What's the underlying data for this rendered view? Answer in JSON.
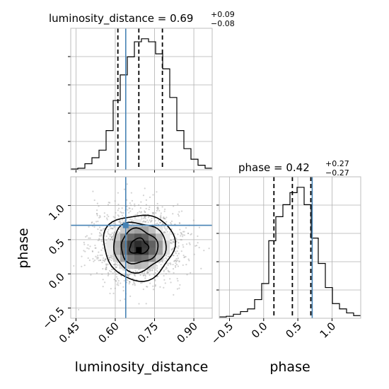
{
  "titles": {
    "p1": {
      "name": "luminosity_distance",
      "eq": " = ",
      "median": "0.69",
      "plus": "+0.09",
      "minus": "−0.08"
    },
    "p2": {
      "name": "phase",
      "eq": " = ",
      "median": "0.42",
      "plus": "+0.27",
      "minus": "−0.27"
    }
  },
  "axes": {
    "xlabel_left": "luminosity_distance",
    "xlabel_right": "phase",
    "ylabel": "phase"
  },
  "colors": {
    "truth": "#4682b4",
    "hist": "#000000"
  },
  "chart_data": {
    "type": "corner",
    "parameters": [
      "luminosity_distance",
      "phase"
    ],
    "grid": true,
    "truths": {
      "luminosity_distance": 0.64,
      "phase": 0.71
    },
    "luminosity_distance": {
      "range": [
        0.43,
        0.97
      ],
      "ticks": [
        0.45,
        0.6,
        0.75,
        0.9
      ],
      "tick_labels": [
        "0.45",
        "0.60",
        "0.75",
        "0.90"
      ],
      "quantiles": [
        0.61,
        0.69,
        0.78
      ],
      "hist_edges": [
        0.43,
        0.457,
        0.484,
        0.511,
        0.538,
        0.565,
        0.592,
        0.619,
        0.646,
        0.673,
        0.7,
        0.727,
        0.754,
        0.781,
        0.808,
        0.835,
        0.862,
        0.889,
        0.916,
        0.943,
        0.97
      ],
      "hist_counts": [
        0.5,
        1,
        4,
        8,
        13,
        26,
        46,
        63,
        75,
        85,
        87,
        85,
        77,
        67,
        48,
        26,
        14,
        7,
        3,
        1
      ]
    },
    "phase": {
      "range": [
        -0.65,
        1.42
      ],
      "ticks": [
        -0.5,
        0.0,
        0.5,
        1.0
      ],
      "tick_labels": [
        "−0.5",
        "0.0",
        "0.5",
        "1.0"
      ],
      "quantiles": [
        0.15,
        0.42,
        0.69
      ],
      "hist_edges": [
        -0.65,
        -0.5465,
        -0.443,
        -0.3395,
        -0.236,
        -0.1325,
        -0.029,
        0.0745,
        0.178,
        0.2815,
        0.385,
        0.4885,
        0.592,
        0.6955,
        0.799,
        0.9025,
        1.006,
        1.1095,
        1.213,
        1.3165,
        1.42
      ],
      "hist_counts": [
        1,
        1.5,
        3,
        5,
        7,
        14,
        26,
        58,
        76,
        85,
        94,
        98,
        85,
        60,
        41,
        23,
        11,
        7,
        4,
        2
      ]
    },
    "joint": {
      "x_range": [
        0.43,
        0.97
      ],
      "y_range": [
        -0.65,
        1.42
      ],
      "peak": {
        "luminosity_distance": 0.69,
        "phase": 0.35
      },
      "contour_levels": [
        "0.5",
        "1.0",
        "1.5",
        "2.0"
      ]
    }
  }
}
